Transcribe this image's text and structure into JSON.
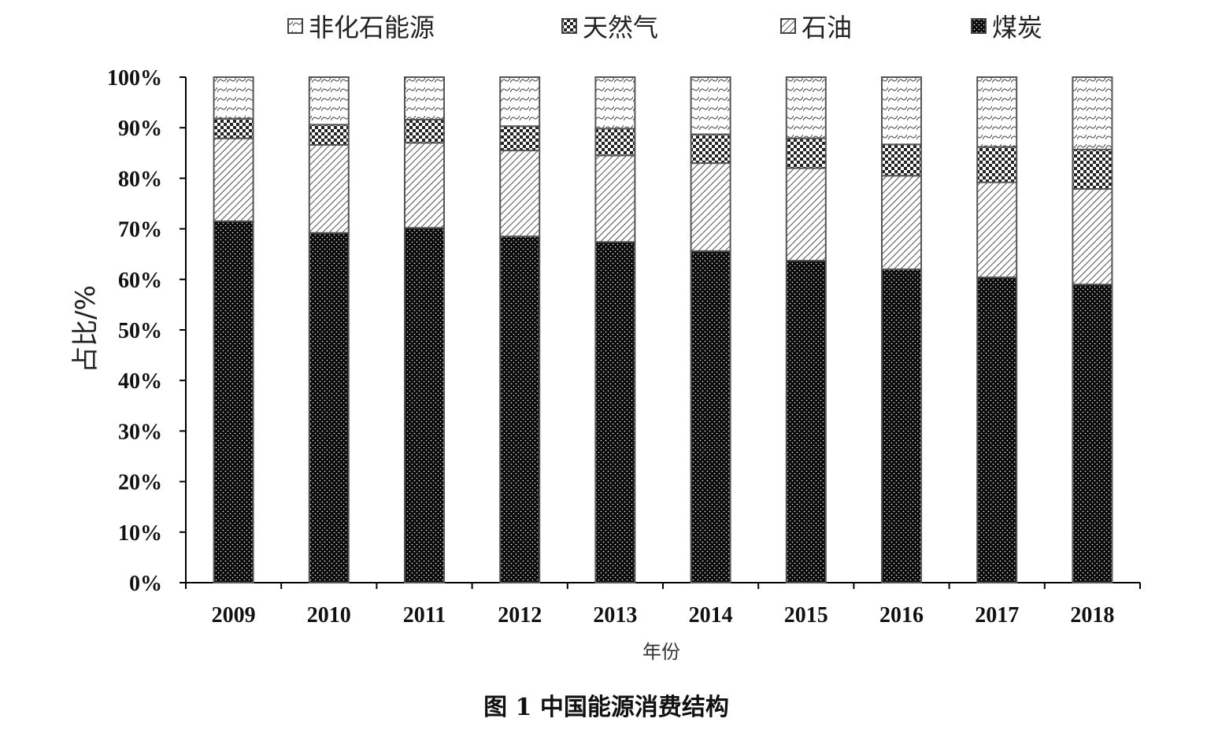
{
  "chart_data": {
    "type": "bar",
    "stacked": true,
    "categories": [
      "2009",
      "2010",
      "2011",
      "2012",
      "2013",
      "2014",
      "2015",
      "2016",
      "2017",
      "2018"
    ],
    "series": [
      {
        "name": "煤炭",
        "pattern": "dots",
        "values": [
          71.5,
          69.2,
          70.2,
          68.5,
          67.4,
          65.6,
          63.7,
          62.0,
          60.4,
          59.0
        ]
      },
      {
        "name": "石油",
        "pattern": "diagonal",
        "values": [
          16.4,
          17.4,
          16.8,
          17.0,
          17.1,
          17.4,
          18.3,
          18.5,
          18.8,
          18.9
        ]
      },
      {
        "name": "天然气",
        "pattern": "checker",
        "values": [
          3.9,
          4.0,
          4.6,
          4.8,
          5.3,
          5.7,
          5.9,
          6.2,
          7.0,
          7.8
        ]
      },
      {
        "name": "非化石能源",
        "pattern": "waves",
        "values": [
          8.2,
          9.4,
          8.4,
          9.7,
          10.2,
          11.3,
          12.1,
          13.3,
          13.8,
          14.3
        ]
      }
    ],
    "legend_order": [
      "非化石能源",
      "天然气",
      "石油",
      "煤炭"
    ],
    "legend_position": "top",
    "ylabel": "占比/%",
    "xlabel": "年份",
    "ylim": [
      0,
      100
    ],
    "yticks": [
      "0%",
      "10%",
      "20%",
      "30%",
      "40%",
      "50%",
      "60%",
      "70%",
      "80%",
      "90%",
      "100%"
    ],
    "grid": false
  },
  "caption": "图 1  中国能源消费结构",
  "colors": {
    "bar_fill": "#000000",
    "bar_stroke": "#555555",
    "axis": "#000000",
    "pattern_light": "#ffffff"
  }
}
